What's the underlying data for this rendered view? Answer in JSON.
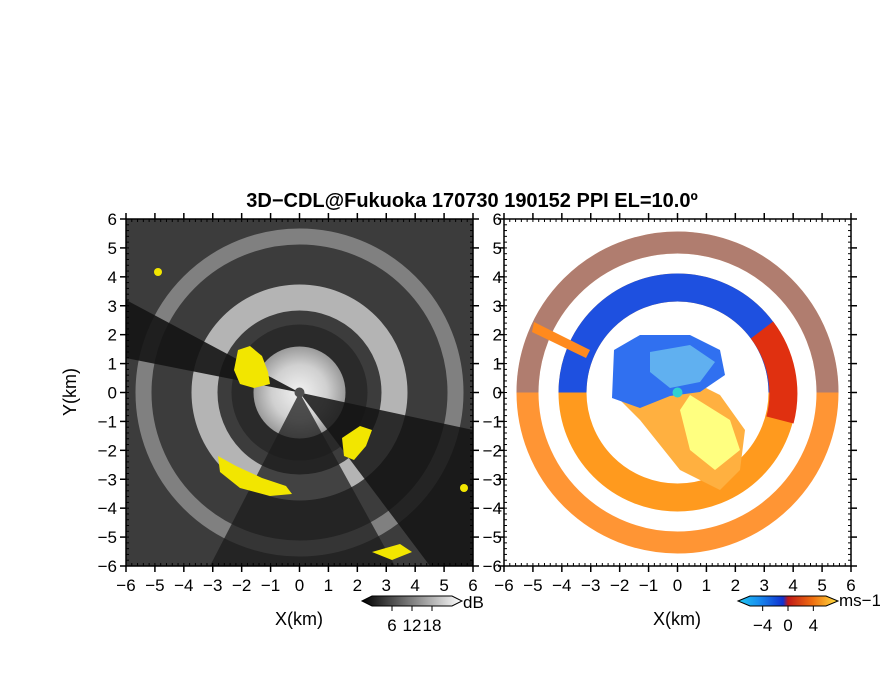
{
  "title": "3D−CDL@Fukuoka 170730 190152 PPI EL=10.0º",
  "chart_data": [
    {
      "type": "heatmap",
      "panel": "left",
      "quantity": "reflectivity",
      "xlabel": "X(km)",
      "ylabel": "Y(km)",
      "xlim": [
        -6,
        6
      ],
      "ylim": [
        -6,
        6
      ],
      "xticks": [
        -6,
        -5,
        -4,
        -3,
        -2,
        -1,
        0,
        1,
        2,
        3,
        4,
        5,
        6
      ],
      "yticks": [
        -6,
        -5,
        -4,
        -3,
        -2,
        -1,
        0,
        1,
        2,
        3,
        4,
        5,
        6
      ],
      "tick_labels": [
        "−6",
        "−5",
        "−4",
        "−3",
        "−2",
        "−1",
        "0",
        "1",
        "2",
        "3",
        "4",
        "5",
        "6"
      ],
      "colorbar": {
        "unit": "dB",
        "ticks": [
          6,
          12,
          18
        ],
        "tick_labels": [
          "6",
          "12",
          "18"
        ],
        "colormap": "grayscale",
        "range": [
          0,
          24
        ]
      },
      "features": [
        {
          "kind": "ring",
          "radius_km": 3.3,
          "width_km": 0.9,
          "value_db": 15
        },
        {
          "kind": "ring",
          "radius_km": 5.4,
          "width_km": 0.5,
          "value_db": 11
        },
        {
          "kind": "disk",
          "radius_km": 1.6,
          "value_db": 18
        },
        {
          "kind": "blocked_sector",
          "from_deg": 150,
          "to_deg": 175
        },
        {
          "kind": "blocked_sector",
          "from_deg": 300,
          "to_deg": 350
        }
      ],
      "flagged_color": "#f2e600"
    },
    {
      "type": "heatmap",
      "panel": "right",
      "quantity": "doppler_velocity",
      "xlabel": "X(km)",
      "ylabel": "",
      "xlim": [
        -6,
        6
      ],
      "ylim": [
        -6,
        6
      ],
      "xticks": [
        -6,
        -5,
        -4,
        -3,
        -2,
        -1,
        0,
        1,
        2,
        3,
        4,
        5,
        6
      ],
      "yticks": [
        -6,
        -5,
        -4,
        -3,
        -2,
        -1,
        0,
        1,
        2,
        3,
        4,
        5,
        6
      ],
      "tick_labels": [
        "−6",
        "−5",
        "−4",
        "−3",
        "−2",
        "−1",
        "0",
        "1",
        "2",
        "3",
        "4",
        "5",
        "6"
      ],
      "colorbar": {
        "unit": "ms−1",
        "ticks": [
          -4,
          0,
          4
        ],
        "tick_labels": [
          "−4",
          "0",
          "4"
        ],
        "colormap": "blue-red-yellow",
        "range": [
          -6,
          6
        ]
      },
      "colors": {
        "negative_far": "#1e50e0",
        "negative_near": "#40c8ff",
        "positive_mid": "#e03010",
        "positive_high": "#ff9a1e",
        "positive_max": "#ffff80",
        "radar": "#30d0d0"
      }
    }
  ]
}
